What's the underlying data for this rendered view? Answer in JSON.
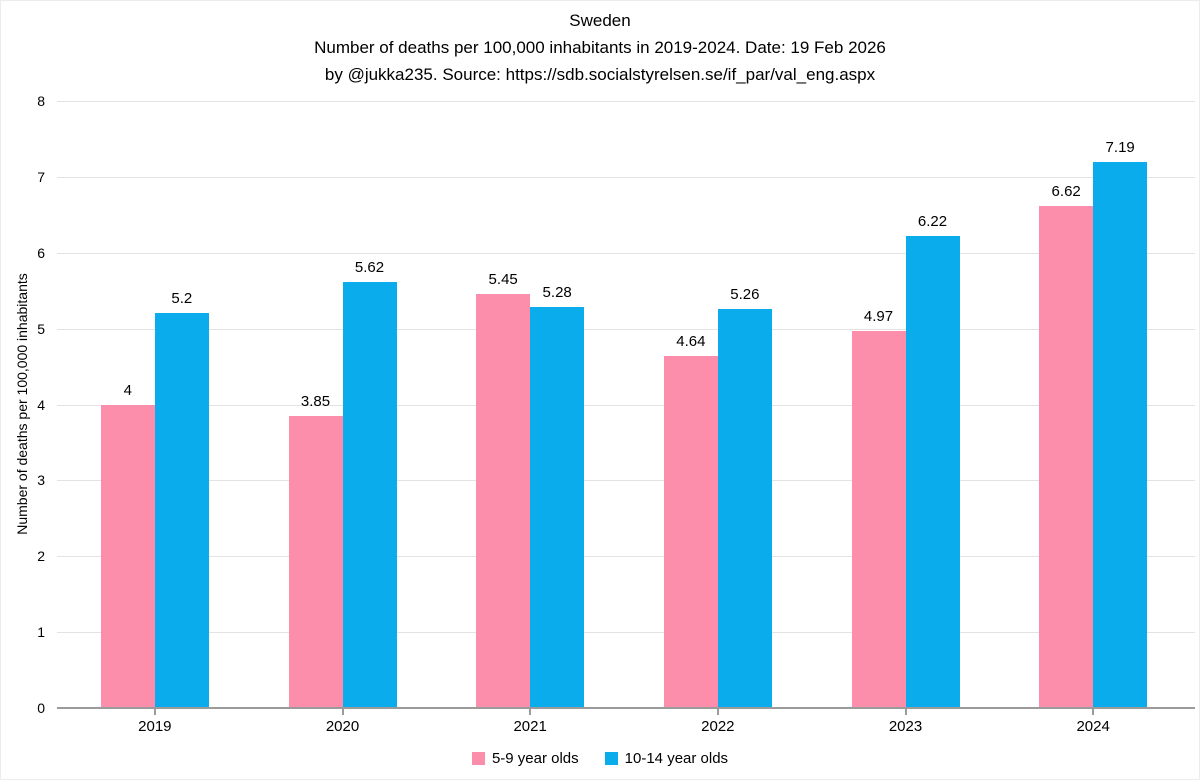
{
  "chart_data": {
    "type": "bar",
    "title": "Sweden",
    "subtitle": "Number of deaths per 100,000 inhabitants in 2019-2024. Date: 19 Feb 2026",
    "attribution": "by @jukka235. Source: https://sdb.socialstyrelsen.se/if_par/val_eng.aspx",
    "categories": [
      "2019",
      "2020",
      "2021",
      "2022",
      "2023",
      "2024"
    ],
    "series": [
      {
        "name": "5-9 year olds",
        "color": "#FC8EAC",
        "values": [
          4,
          3.85,
          5.45,
          4.64,
          4.97,
          6.62
        ]
      },
      {
        "name": "10-14 year olds",
        "color": "#0AACEC",
        "values": [
          5.2,
          5.62,
          5.28,
          5.26,
          6.22,
          7.19
        ]
      }
    ],
    "xlabel": "",
    "ylabel": "Number of deaths per 100,000 inhabitants",
    "ylim": [
      0,
      8
    ],
    "yticks": [
      0,
      1,
      2,
      3,
      4,
      5,
      6,
      7,
      8
    ],
    "grid": true,
    "legend_position": "bottom",
    "data_labels": true,
    "style": {
      "gridline_color": "#E3E3E3",
      "axis_color": "#9B9B9B",
      "text_color": "#000000",
      "background": "#FFFFFF"
    }
  }
}
